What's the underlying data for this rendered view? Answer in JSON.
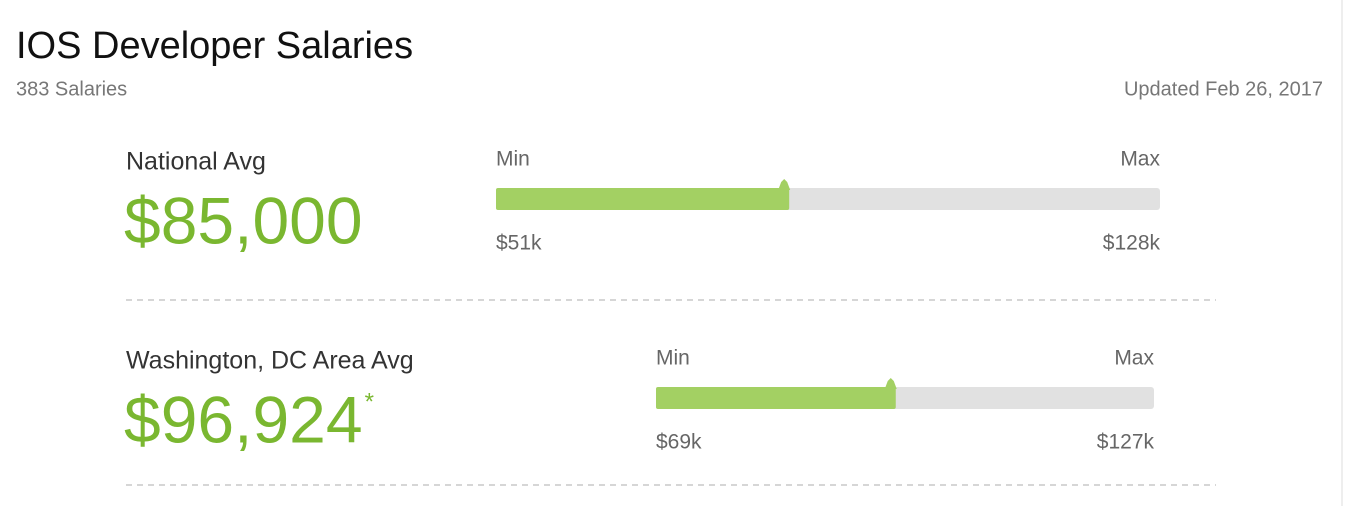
{
  "header": {
    "title": "IOS Developer Salaries",
    "count": "383 Salaries",
    "updated": "Updated Feb 26, 2017"
  },
  "rows": [
    {
      "label": "National Avg",
      "avg": {
        "value": 85000,
        "label": "$85,000"
      },
      "min_title": "Min",
      "max_title": "Max",
      "min": {
        "value": 51000,
        "label": "$51k"
      },
      "max": {
        "value": 128000,
        "label": "$128k"
      }
    },
    {
      "label": "Washington, DC Area Avg",
      "avg": {
        "value": 96924,
        "label": "$96,924"
      },
      "note": "*",
      "min_title": "Min",
      "max_title": "Max",
      "min": {
        "value": 69000,
        "label": "$69k"
      },
      "max": {
        "value": 127000,
        "label": "$127k"
      }
    }
  ]
}
